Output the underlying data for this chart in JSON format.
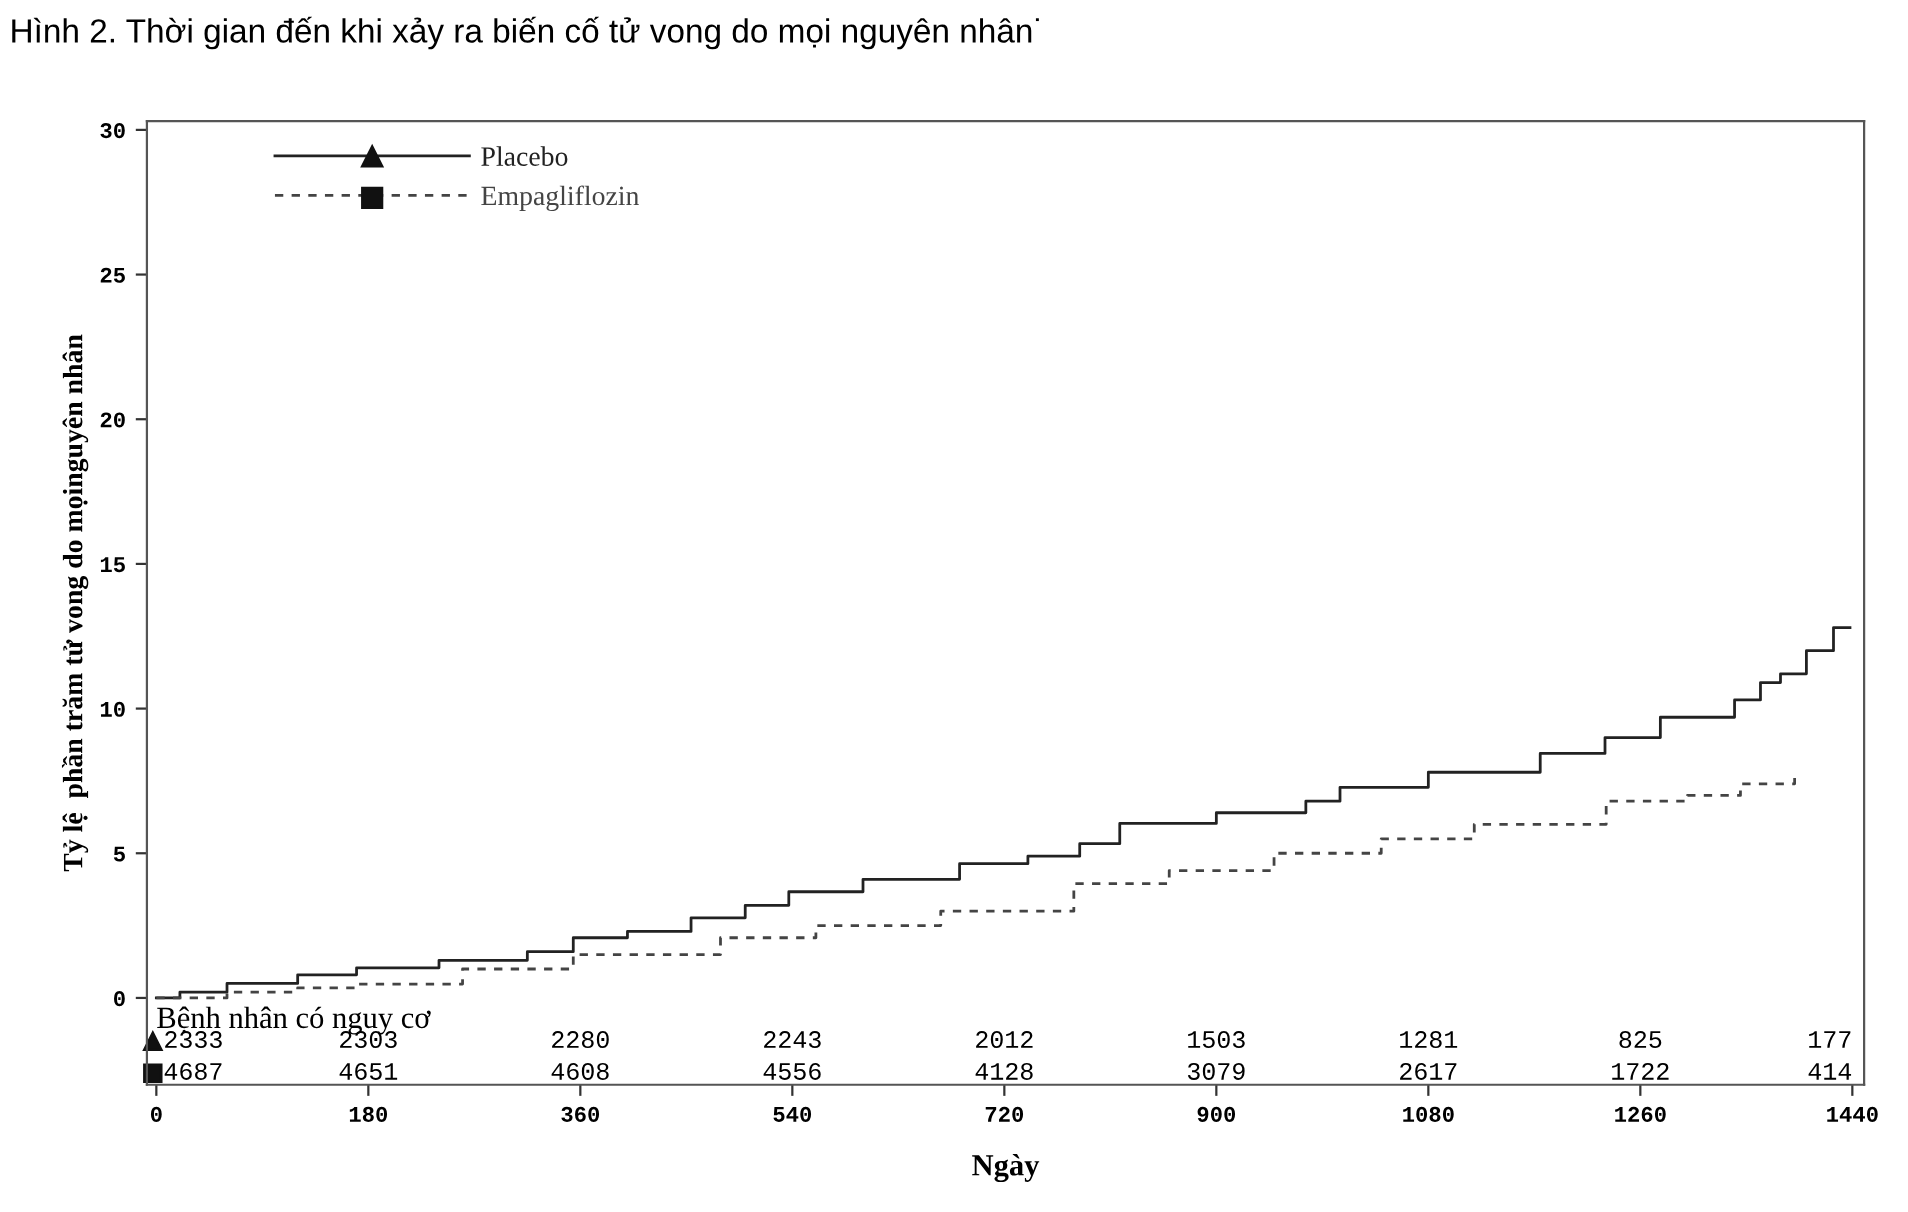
{
  "chart_data": {
    "type": "step",
    "title": "Hình 2. Thời gian đến khi xảy ra biến cố tử vong do mọi nguyên nhân˙",
    "xlabel": "Ngày",
    "ylabel": "Tỷ lệ  phần trăm tử vong do mọinguyên nhân",
    "xlim": [
      -8,
      1450
    ],
    "xticks": [
      0,
      180,
      360,
      540,
      720,
      900,
      1080,
      1260,
      1440
    ],
    "ylim": [
      -3,
      30.3
    ],
    "yticks": [
      0,
      5,
      10,
      15,
      20,
      25,
      30
    ],
    "legend": "top left",
    "grid": false,
    "series": [
      {
        "name": "Placebo",
        "color": "#222222",
        "line_style": "solid",
        "x": [
          0,
          20,
          60,
          120,
          170,
          240,
          315,
          354,
          400,
          454,
          500,
          537,
          600,
          682,
          740,
          784,
          818,
          900,
          976,
          1005,
          1080,
          1175,
          1230,
          1277,
          1323,
          1340,
          1362,
          1379,
          1401,
          1424,
          1438
        ],
        "values": [
          0,
          0.2,
          0.5,
          0.8,
          1.04,
          1.3,
          1.6,
          2.08,
          2.3,
          2.77,
          3.2,
          3.67,
          4.1,
          4.64,
          4.9,
          5.33,
          6.03,
          6.4,
          6.8,
          7.28,
          7.8,
          8.45,
          9.0,
          9.7,
          9.7,
          10.3,
          10.9,
          11.2,
          12.0,
          12.8,
          12.8
        ]
      },
      {
        "name": "Empagliflozin",
        "color": "#444444",
        "line_style": "dashed",
        "x": [
          0,
          60,
          120,
          170,
          260,
          354,
          479,
          560,
          666,
          779,
          860,
          949,
          1040,
          1119,
          1231,
          1300,
          1345,
          1391
        ],
        "values": [
          0,
          0.2,
          0.35,
          0.48,
          1.0,
          1.5,
          2.08,
          2.5,
          3.0,
          3.95,
          4.4,
          5.0,
          5.5,
          6.0,
          6.8,
          7.0,
          7.4,
          7.75
        ]
      }
    ],
    "annotations": [
      "Bệnh nhân có nguy cơ",
      "2333",
      "2303",
      "2280",
      "2243",
      "2012",
      "1503",
      "1281",
      "825",
      "177",
      "4687",
      "4651",
      "4608",
      "4556",
      "4128",
      "3079",
      "2617",
      "1722",
      "414"
    ]
  }
}
